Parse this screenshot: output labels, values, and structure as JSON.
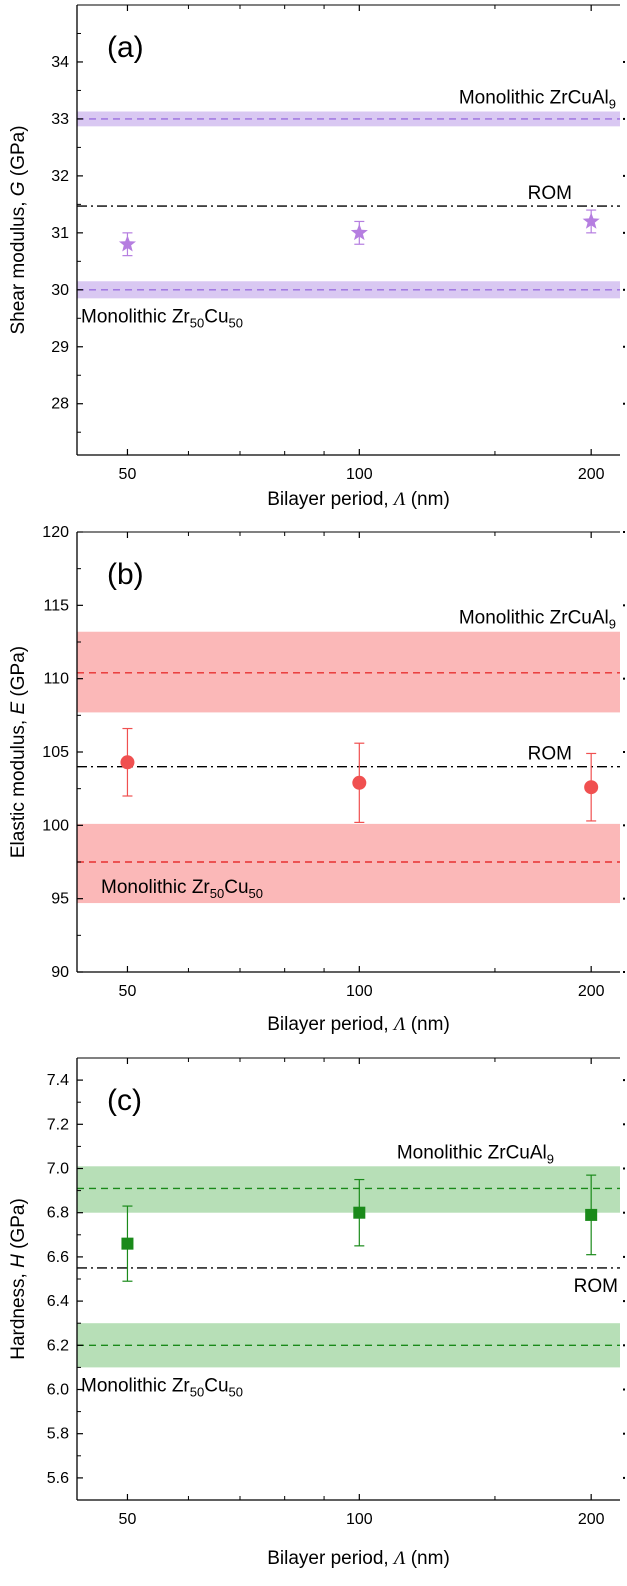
{
  "chart_data": [
    {
      "type": "scatter",
      "panel_label": "(a)",
      "xscale": "log",
      "xlim": [
        43,
        218
      ],
      "ylim": [
        27.1,
        35.0
      ],
      "xticks": [
        50,
        100,
        200
      ],
      "yticks": [
        28,
        29,
        30,
        31,
        32,
        33,
        34
      ],
      "xlabel": {
        "pre": "Bilayer period, ",
        "sym": "Λ",
        "post": " (nm)"
      },
      "ylabel": {
        "pre": "Shear modulus, ",
        "sym": "G",
        "post": " (GPa)"
      },
      "series": [
        {
          "marker": "star",
          "color": "#b57ee0",
          "x": [
            50,
            100,
            200
          ],
          "y": [
            30.8,
            31.0,
            31.2
          ],
          "err": [
            0.2,
            0.2,
            0.2
          ]
        }
      ],
      "bands": [
        {
          "low": 32.87,
          "high": 33.13,
          "mid": 33.0,
          "fill": "#d9c8f2",
          "line": "#9b6fe0",
          "label": {
            "base": "Monolithic ZrCuAl",
            "sub": "9",
            "pos": "above-right"
          }
        },
        {
          "low": 29.85,
          "high": 30.15,
          "mid": 30.0,
          "fill": "#d9c8f2",
          "line": "#9b6fe0",
          "label": {
            "base": "Monolithic Zr",
            "sub": "50",
            "base2": "Cu",
            "sub2": "50",
            "pos": "below-left"
          }
        }
      ],
      "rom": {
        "y": 31.47,
        "label": "ROM",
        "pos": "above-right"
      }
    },
    {
      "type": "scatter",
      "panel_label": "(b)",
      "xscale": "log",
      "xlim": [
        43,
        218
      ],
      "ylim": [
        90,
        120
      ],
      "xticks": [
        50,
        100,
        200
      ],
      "yticks": [
        90,
        95,
        100,
        105,
        110,
        115,
        120
      ],
      "xlabel": {
        "pre": "Bilayer period, ",
        "sym": "Λ",
        "post": " (nm)"
      },
      "ylabel": {
        "pre": "Elastic modulus, ",
        "sym": "E",
        "post": " (GPa)"
      },
      "series": [
        {
          "marker": "circle",
          "color": "#f05050",
          "x": [
            50,
            100,
            200
          ],
          "y": [
            104.3,
            102.9,
            102.6
          ],
          "err": [
            2.3,
            2.7,
            2.3
          ]
        }
      ],
      "bands": [
        {
          "low": 107.7,
          "high": 113.2,
          "mid": 110.4,
          "fill": "#fbb8b8",
          "line": "#e83030",
          "label": {
            "base": "Monolithic ZrCuAl",
            "sub": "9",
            "pos": "above-right"
          }
        },
        {
          "low": 94.7,
          "high": 100.1,
          "mid": 97.5,
          "fill": "#fbb8b8",
          "line": "#e83030",
          "label": {
            "base": "Monolithic Zr",
            "sub": "50",
            "base2": "Cu",
            "sub2": "50",
            "pos": "inside-bottom-left"
          }
        }
      ],
      "rom": {
        "y": 104.0,
        "label": "ROM",
        "pos": "above-right"
      }
    },
    {
      "type": "scatter",
      "panel_label": "(c)",
      "xscale": "log",
      "xlim": [
        43,
        218
      ],
      "ylim": [
        5.5,
        7.5
      ],
      "xticks": [
        50,
        100,
        200
      ],
      "yticks": [
        5.6,
        5.8,
        6.0,
        6.2,
        6.4,
        6.6,
        6.8,
        7.0,
        7.2,
        7.4
      ],
      "xlabel": {
        "pre": "Bilayer period, ",
        "sym": "Λ",
        "post": " (nm)"
      },
      "ylabel": {
        "pre": "Hardness, ",
        "sym": "H",
        "post": " (GPa)"
      },
      "series": [
        {
          "marker": "square",
          "color": "#1a8a1a",
          "x": [
            50,
            100,
            200
          ],
          "y": [
            6.66,
            6.8,
            6.79
          ],
          "err": [
            0.17,
            0.15,
            0.18
          ]
        }
      ],
      "bands": [
        {
          "low": 6.8,
          "high": 7.01,
          "mid": 6.91,
          "fill": "#b7dfb7",
          "line": "#1a8a1a",
          "label": {
            "base": "Monolithic ZrCuAl",
            "sub": "9",
            "pos": "above-center-right"
          }
        },
        {
          "low": 6.1,
          "high": 6.3,
          "mid": 6.2,
          "fill": "#b7dfb7",
          "line": "#1a8a1a",
          "label": {
            "base": "Monolithic Zr",
            "sub": "50",
            "base2": "Cu",
            "sub2": "50",
            "pos": "below-left"
          }
        }
      ],
      "rom": {
        "y": 6.55,
        "label": "ROM",
        "pos": "below-right"
      }
    }
  ]
}
